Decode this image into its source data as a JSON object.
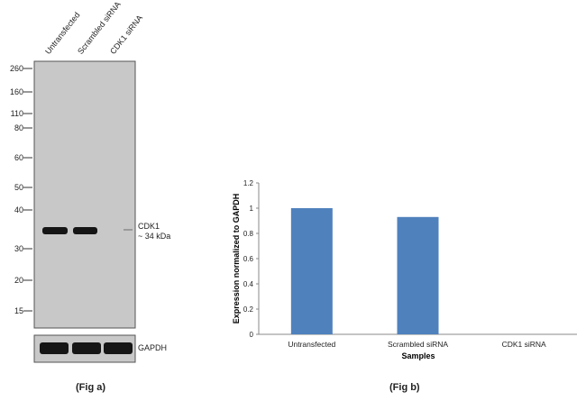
{
  "western_blot": {
    "lanes": [
      "Untransfected",
      "Scrambled siRNA",
      "CDK1 siRNA"
    ],
    "mw_markers": [
      "260",
      "160",
      "110",
      "80",
      "60",
      "50",
      "40",
      "30",
      "20",
      "15"
    ],
    "band_label_line1": "CDK1",
    "band_label_line2": "~ 34 kDa",
    "loading_control": "GAPDH",
    "caption": "(Fig a)"
  },
  "chart_data": {
    "type": "bar",
    "categories": [
      "Untransfected",
      "Scrambled siRNA",
      "CDK1 siRNA"
    ],
    "values": [
      1.0,
      0.93,
      0.0
    ],
    "xlabel": "Samples",
    "ylabel": "Expression  normalized to GAPDH",
    "ylim": [
      0,
      1.2
    ],
    "yticks": [
      "0",
      "0.2",
      "0.4",
      "0.6",
      "0.8",
      "1",
      "1.2"
    ],
    "bar_color": "#4f81bd",
    "grid": false,
    "caption": "(Fig b)"
  }
}
